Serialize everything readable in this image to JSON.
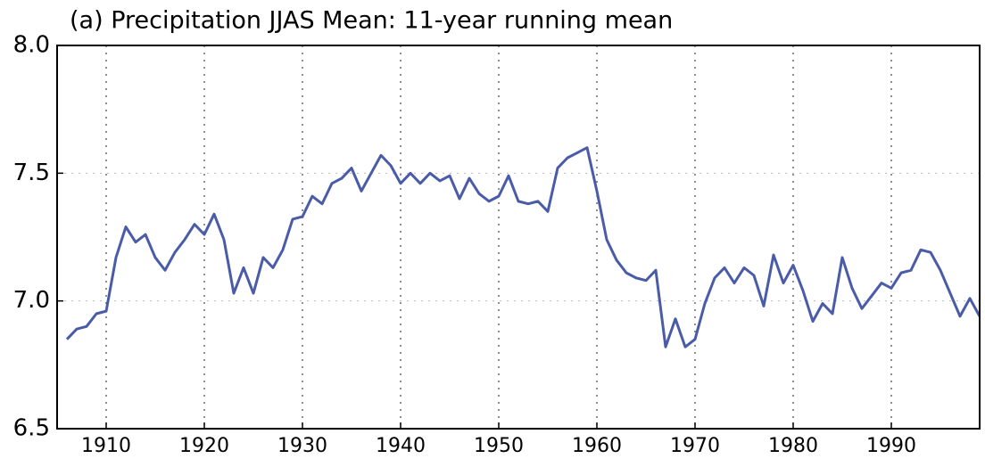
{
  "chart_data": {
    "type": "line",
    "title": "(a) Precipitation JJAS Mean: 11-year running mean",
    "x": [
      1906,
      1907,
      1908,
      1909,
      1910,
      1911,
      1912,
      1913,
      1914,
      1915,
      1916,
      1917,
      1918,
      1919,
      1920,
      1921,
      1922,
      1923,
      1924,
      1925,
      1926,
      1927,
      1928,
      1929,
      1930,
      1931,
      1932,
      1933,
      1934,
      1935,
      1936,
      1937,
      1938,
      1939,
      1940,
      1941,
      1942,
      1943,
      1944,
      1945,
      1946,
      1947,
      1948,
      1949,
      1950,
      1951,
      1952,
      1953,
      1954,
      1955,
      1956,
      1957,
      1958,
      1959,
      1960,
      1961,
      1962,
      1963,
      1964,
      1965,
      1966,
      1967,
      1968,
      1969,
      1970,
      1971,
      1972,
      1973,
      1974,
      1975,
      1976,
      1977,
      1978,
      1979,
      1980,
      1981,
      1982,
      1983,
      1984,
      1985,
      1986,
      1987,
      1988,
      1989,
      1990,
      1991,
      1992,
      1993,
      1994,
      1995,
      1996,
      1997,
      1998,
      1999
    ],
    "series": [
      {
        "color": "#4a5ca8",
        "values": [
          6.85,
          6.89,
          6.9,
          6.95,
          6.96,
          7.17,
          7.29,
          7.23,
          7.26,
          7.17,
          7.12,
          7.19,
          7.24,
          7.3,
          7.26,
          7.34,
          7.24,
          7.03,
          7.13,
          7.03,
          7.17,
          7.13,
          7.2,
          7.32,
          7.33,
          7.41,
          7.38,
          7.46,
          7.48,
          7.52,
          7.43,
          7.5,
          7.57,
          7.53,
          7.46,
          7.5,
          7.46,
          7.5,
          7.47,
          7.49,
          7.4,
          7.48,
          7.42,
          7.39,
          7.41,
          7.49,
          7.39,
          7.38,
          7.39,
          7.35,
          7.52,
          7.56,
          7.58,
          7.6,
          7.43,
          7.24,
          7.16,
          7.11,
          7.09,
          7.08,
          7.12,
          6.82,
          6.93,
          6.82,
          6.85,
          6.99,
          7.09,
          7.13,
          7.07,
          7.13,
          7.1,
          6.98,
          7.18,
          7.07,
          7.14,
          7.04,
          6.92,
          6.99,
          6.95,
          7.17,
          7.05,
          6.97,
          7.02,
          7.07,
          7.05,
          7.11,
          7.12,
          7.2,
          7.19,
          7.12,
          7.03,
          6.94,
          7.01,
          6.94
        ]
      }
    ],
    "xlim": [
      1905,
      1999
    ],
    "xticks": [
      1910,
      1920,
      1930,
      1940,
      1950,
      1960,
      1970,
      1980,
      1990
    ],
    "ylim": [
      6.5,
      8.0
    ],
    "yticks": [
      {
        "value": 6.5,
        "label": "6.5"
      },
      {
        "value": 7.0,
        "label": "7.0"
      },
      {
        "value": 7.5,
        "label": "7.5"
      },
      {
        "value": 8.0,
        "label": "8.0"
      }
    ],
    "grid": true
  }
}
